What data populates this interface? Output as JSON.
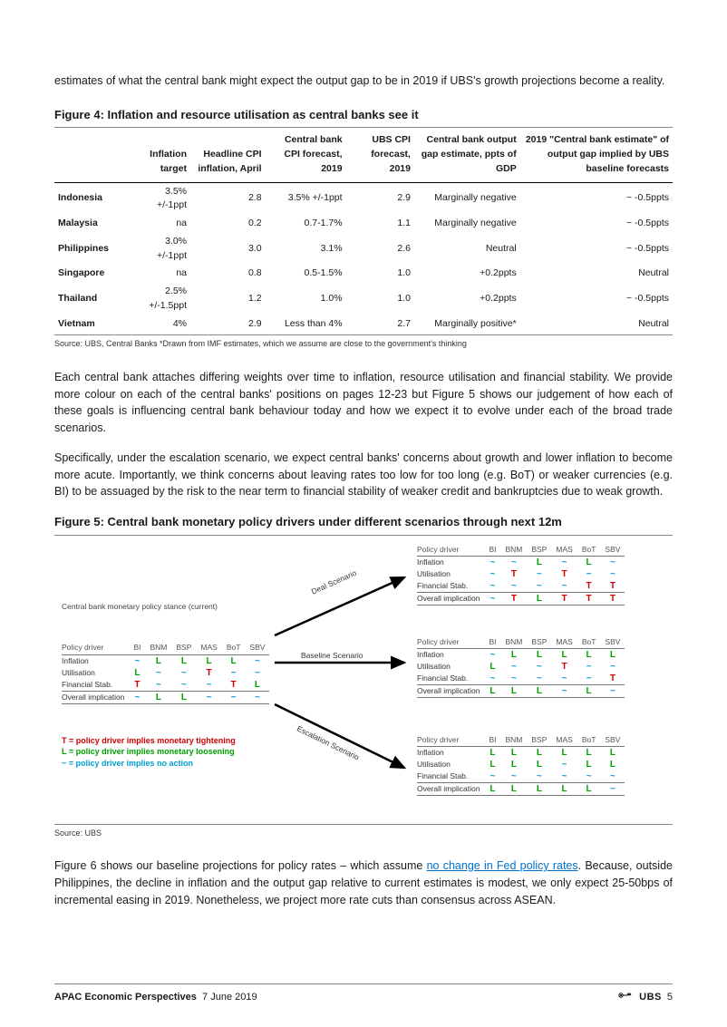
{
  "intro": "estimates of what the central bank might expect the output gap to be in 2019 if UBS's growth projections become a reality.",
  "fig4": {
    "title": "Figure 4: Inflation and resource utilisation as central banks see it",
    "columns": [
      "",
      "Inflation target",
      "Headline CPI inflation, April",
      "Central bank CPI forecast, 2019",
      "UBS CPI forecast, 2019",
      "Central bank output gap estimate, ppts of GDP",
      "2019 \"Central bank estimate\" of output gap implied by UBS baseline forecasts"
    ],
    "rows": [
      [
        "Indonesia",
        "3.5% +/-1ppt",
        "2.8",
        "3.5% +/-1ppt",
        "2.9",
        "Marginally negative",
        "~ -0.5ppts"
      ],
      [
        "Malaysia",
        "na",
        "0.2",
        "0.7-1.7%",
        "1.1",
        "Marginally negative",
        "~ -0.5ppts"
      ],
      [
        "Philippines",
        "3.0% +/-1ppt",
        "3.0",
        "3.1%",
        "2.6",
        "Neutral",
        "~ -0.5ppts"
      ],
      [
        "Singapore",
        "na",
        "0.8",
        "0.5-1.5%",
        "1.0",
        "+0.2ppts",
        "Neutral"
      ],
      [
        "Thailand",
        "2.5% +/-1.5ppt",
        "1.2",
        "1.0%",
        "1.0",
        "+0.2ppts",
        "~ -0.5ppts"
      ],
      [
        "Vietnam",
        "4%",
        "2.9",
        "Less than 4%",
        "2.7",
        "Marginally positive*",
        "Neutral"
      ]
    ],
    "source": "Source: UBS, Central Banks    *Drawn from IMF estimates, which we assume are close to the government's thinking"
  },
  "para1": "Each central bank attaches differing weights over time to inflation, resource utilisation and financial stability. We provide more colour on each of the central banks' positions on pages 12-23 but Figure 5 shows our judgement of how each of these goals is influencing central bank behaviour today and how we expect it to evolve under each of the broad trade scenarios.",
  "para2": "Specifically, under the escalation scenario, we expect central banks' concerns about growth and lower inflation to become more acute. Importantly, we think concerns about leaving rates too low for too long (e.g. BoT) or weaker currencies (e.g. BI) to be assuaged by the risk to the near term to financial stability of weaker credit and bankruptcies due to weak growth.",
  "fig5": {
    "title": "Figure 5: Central bank monetary policy drivers under different scenarios through next 12m",
    "banks": [
      "BI",
      "BNM",
      "BSP",
      "MAS",
      "BoT",
      "SBV"
    ],
    "driver_rows": [
      "Inflation",
      "Utilisation",
      "Financial Stab.",
      "Overall implication"
    ],
    "current_title": "Central bank monetary policy stance (current)",
    "colors": {
      "T": "#d00000",
      "L": "#00a000",
      "~": "#00a0d0"
    },
    "current": [
      [
        "~",
        "L",
        "L",
        "L",
        "L",
        "~"
      ],
      [
        "L",
        "~",
        "~",
        "T",
        "~",
        "~"
      ],
      [
        "T",
        "~",
        "~",
        "~",
        "T",
        "L"
      ],
      [
        "~",
        "L",
        "L",
        "~",
        "~",
        "~"
      ]
    ],
    "deal_label": "Deal Scenario",
    "deal": [
      [
        "~",
        "~",
        "L",
        "~",
        "L",
        "~"
      ],
      [
        "~",
        "T",
        "~",
        "T",
        "~",
        "~"
      ],
      [
        "~",
        "~",
        "~",
        "~",
        "T",
        "T"
      ],
      [
        "~",
        "T",
        "L",
        "T",
        "T",
        "T"
      ]
    ],
    "baseline_label": "Baseline Scenario",
    "baseline": [
      [
        "~",
        "L",
        "L",
        "L",
        "L",
        "L"
      ],
      [
        "L",
        "~",
        "~",
        "T",
        "~",
        "~"
      ],
      [
        "~",
        "~",
        "~",
        "~",
        "~",
        "T"
      ],
      [
        "L",
        "L",
        "L",
        "~",
        "L",
        "~"
      ]
    ],
    "escalation_label": "Escalation Scenario",
    "escalation": [
      [
        "L",
        "L",
        "L",
        "L",
        "L",
        "L"
      ],
      [
        "L",
        "L",
        "L",
        "~",
        "L",
        "L"
      ],
      [
        "~",
        "~",
        "~",
        "~",
        "~",
        "~"
      ],
      [
        "L",
        "L",
        "L",
        "L",
        "L",
        "~"
      ]
    ],
    "legend": {
      "t": "T = policy driver implies monetary tightening",
      "l": "L = policy driver implies monetary loosening",
      "n": "~ = policy driver implies no action"
    },
    "source": "Source:  UBS"
  },
  "para3a": "Figure 6 shows our baseline projections for policy rates – which assume ",
  "para3link": "no change in Fed policy rates",
  "para3b": ". Because, outside Philippines, the decline in inflation and the output gap relative to current estimates is modest, we only expect 25-50bps of incremental easing in 2019. Nonetheless, we project more rate cuts than consensus across ASEAN.",
  "footer": {
    "left_title": "APAC Economic Perspectives",
    "left_date": "7 June 2019",
    "brand": "UBS",
    "page": "5"
  }
}
